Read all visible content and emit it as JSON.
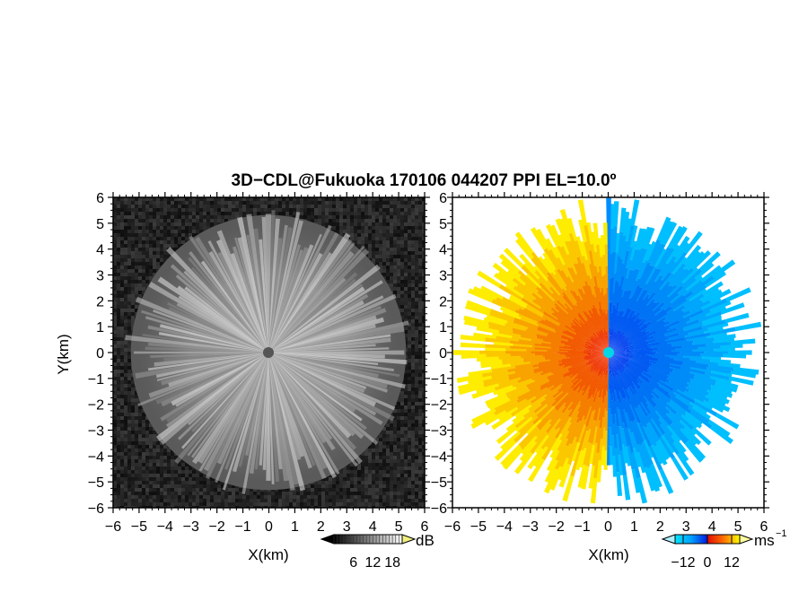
{
  "chart_data": [
    {
      "type": "heatmap",
      "panel": "left",
      "title": "3D−CDL@Fukuoka 170106 044207 PPI EL=10.0º",
      "xlabel": "X(km)",
      "ylabel": "Y(km)",
      "xlim": [
        -6,
        6
      ],
      "ylim": [
        -6,
        6
      ],
      "x_ticks": [
        "−6",
        "−5",
        "−4",
        "−3",
        "−2",
        "−1",
        "0",
        "1",
        "2",
        "3",
        "4",
        "5",
        "6"
      ],
      "y_ticks": [
        "−6",
        "−5",
        "−4",
        "−3",
        "−2",
        "−1",
        "0",
        "1",
        "2",
        "3",
        "4",
        "5",
        "6"
      ],
      "max_range_km": 5.3,
      "colorbar": {
        "unit": "dB",
        "colormap": "gray",
        "range": [
          0,
          21
        ],
        "ticks": [
          "6",
          "12",
          "18"
        ],
        "extend": "both"
      }
    },
    {
      "type": "heatmap",
      "panel": "right",
      "xlabel": "X(km)",
      "xlim": [
        -6,
        6
      ],
      "ylim": [
        -6,
        6
      ],
      "x_ticks": [
        "−6",
        "−5",
        "−4",
        "−3",
        "−2",
        "−1",
        "0",
        "1",
        "2",
        "3",
        "4",
        "5",
        "6"
      ],
      "y_ticks": [
        "−6",
        "−5",
        "−4",
        "−3",
        "−2",
        "−1",
        "0",
        "1",
        "2",
        "3",
        "4",
        "5",
        "6"
      ],
      "max_range_km": 6,
      "colorbar": {
        "unit": "ms",
        "unit_exp": "−1",
        "colormap": "cyan-blue-red-yellow",
        "range": [
          -16,
          16
        ],
        "ticks": [
          "−12",
          "0",
          "12"
        ],
        "extend": "both"
      },
      "colors": {
        "approaching": "#0033ee",
        "approaching_far": "#00ccff",
        "receding": "#ee2200",
        "receding_far": "#ffff00"
      }
    }
  ]
}
